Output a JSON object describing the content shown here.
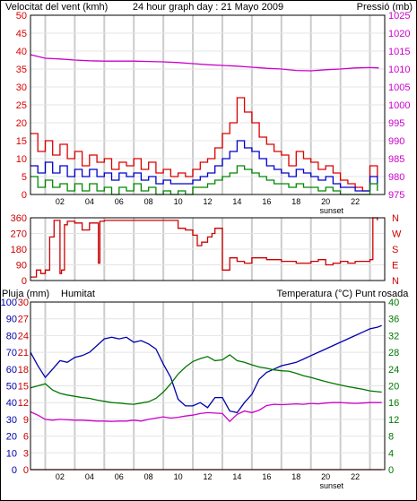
{
  "colors": {
    "wind_speed": "#dd0000",
    "wind_avg": "#0000cc",
    "wind_min": "#008800",
    "pressure": "#cc00cc",
    "direction": "#cc0000",
    "rain": "#cc0000",
    "humidity": "#0000aa",
    "temperature": "#007700",
    "dewpoint": "#cc00cc",
    "frame": "#000000",
    "grid": "#cccccc"
  },
  "chart_data": [
    {
      "type": "line",
      "title": "24 hour graph day : 21 Mayo 2009",
      "title_left": "Velocitat del vent (kmh)",
      "title_right": "Pressió (mb)",
      "x_tick_labels": [
        "02",
        "04",
        "06",
        "08",
        "10",
        "12",
        "14",
        "16",
        "18",
        "20",
        "22"
      ],
      "sunset_label": "sunset",
      "sunset_hour": 20.4,
      "y_left_ticks": [
        0,
        5,
        10,
        15,
        20,
        25,
        30,
        35,
        40,
        45,
        50
      ],
      "y_left_range": [
        0,
        50
      ],
      "y_right_ticks": [
        975,
        980,
        985,
        990,
        995,
        1000,
        1005,
        1010,
        1015,
        1020,
        1025
      ],
      "y_right_range": [
        975,
        1025
      ],
      "grid": true,
      "series": [
        {
          "key": "wind_gust",
          "axis": "left",
          "color": "wind_speed",
          "x": [
            0,
            0.5,
            1,
            1.5,
            2,
            2.5,
            3,
            3.5,
            4,
            4.5,
            5,
            5.5,
            6,
            6.5,
            7,
            7.5,
            8,
            8.5,
            9,
            9.5,
            10,
            10.5,
            11,
            11.5,
            12,
            12.5,
            13,
            13.5,
            14,
            14.5,
            15,
            15.5,
            16,
            16.5,
            17,
            17.5,
            18,
            18.5,
            19,
            19.5,
            20,
            20.5,
            21,
            21.5,
            22,
            22.5,
            23,
            23.5
          ],
          "values": [
            17,
            12,
            15,
            11,
            14,
            10,
            12,
            8,
            11,
            9,
            10,
            7,
            9,
            8,
            10,
            7,
            9,
            6,
            7,
            5,
            6,
            5,
            7,
            9,
            10,
            13,
            17,
            20,
            27,
            23,
            20,
            16,
            14,
            12,
            11,
            8,
            12,
            10,
            9,
            7,
            8,
            6,
            4,
            3,
            2,
            1,
            8,
            5
          ]
        },
        {
          "key": "wind_avg",
          "axis": "left",
          "color": "wind_avg",
          "x": [
            0,
            0.5,
            1,
            1.5,
            2,
            2.5,
            3,
            3.5,
            4,
            4.5,
            5,
            5.5,
            6,
            6.5,
            7,
            7.5,
            8,
            8.5,
            9,
            9.5,
            10,
            10.5,
            11,
            11.5,
            12,
            12.5,
            13,
            13.5,
            14,
            14.5,
            15,
            15.5,
            16,
            16.5,
            17,
            17.5,
            18,
            18.5,
            19,
            19.5,
            20,
            20.5,
            21,
            21.5,
            22,
            22.5,
            23,
            23.5
          ],
          "values": [
            8,
            6,
            9,
            6,
            8,
            5,
            7,
            5,
            7,
            5,
            6,
            4,
            6,
            5,
            6,
            4,
            5,
            3,
            4,
            3,
            3,
            3,
            4,
            5,
            6,
            8,
            10,
            12,
            15,
            13,
            12,
            10,
            8,
            7,
            6,
            5,
            7,
            6,
            5,
            4,
            5,
            3,
            2,
            2,
            1,
            1,
            5,
            3
          ]
        },
        {
          "key": "wind_min",
          "axis": "left",
          "color": "wind_min",
          "x": [
            0,
            0.5,
            1,
            1.5,
            2,
            2.5,
            3,
            3.5,
            4,
            4.5,
            5,
            5.5,
            6,
            6.5,
            7,
            7.5,
            8,
            8.5,
            9,
            9.5,
            10,
            10.5,
            11,
            11.5,
            12,
            12.5,
            13,
            13.5,
            14,
            14.5,
            15,
            15.5,
            16,
            16.5,
            17,
            17.5,
            18,
            18.5,
            19,
            19.5,
            20,
            20.5,
            21,
            21.5,
            22,
            22.5,
            23,
            23.5
          ],
          "values": [
            5,
            2,
            4,
            2,
            3,
            1,
            3,
            1,
            3,
            1,
            2,
            0,
            2,
            1,
            3,
            1,
            2,
            0,
            1,
            0,
            1,
            0,
            2,
            2,
            3,
            4,
            5,
            6,
            8,
            7,
            6,
            5,
            4,
            3,
            3,
            2,
            3,
            2,
            2,
            1,
            2,
            1,
            0,
            0,
            0,
            0,
            3,
            1
          ]
        },
        {
          "key": "pressure",
          "axis": "right",
          "color": "pressure",
          "x": [
            0,
            1,
            2,
            3,
            4,
            5,
            6,
            7,
            8,
            9,
            10,
            11,
            12,
            13,
            14,
            15,
            16,
            17,
            18,
            19,
            20,
            21,
            22,
            23,
            23.6
          ],
          "values": [
            1014,
            1013,
            1012.8,
            1012.5,
            1012.3,
            1012.2,
            1012.2,
            1012.2,
            1012.1,
            1012,
            1011.8,
            1011.5,
            1011.2,
            1011,
            1010.8,
            1010.5,
            1010.2,
            1010,
            1009.6,
            1009.5,
            1009.8,
            1010,
            1010.3,
            1010.4,
            1010.3
          ]
        }
      ]
    },
    {
      "type": "line",
      "title": "",
      "x_tick_labels": [],
      "y_ticks": [
        0,
        90,
        180,
        270,
        360
      ],
      "y_range": [
        0,
        360
      ],
      "y_right_labels": [
        "N",
        "W",
        "S",
        "E",
        "N"
      ],
      "grid": true,
      "series": [
        {
          "key": "wind_direction",
          "color": "direction",
          "x": [
            0,
            0.4,
            0.7,
            1,
            1.3,
            1.6,
            2,
            2.1,
            2.3,
            2.5,
            3,
            3.5,
            4,
            4.5,
            4.6,
            4.7,
            5,
            5.5,
            6,
            7,
            8,
            9,
            9.5,
            10,
            10.5,
            11,
            11.3,
            11.6,
            12,
            12.3,
            12.5,
            13,
            13.5,
            14,
            14.5,
            15,
            16,
            17,
            18,
            19,
            19.5,
            20,
            20.5,
            21,
            21.5,
            22,
            22.5,
            23,
            23.2,
            23.5
          ],
          "values": [
            20,
            60,
            40,
            60,
            250,
            345,
            40,
            60,
            320,
            340,
            330,
            290,
            330,
            330,
            100,
            340,
            345,
            345,
            345,
            345,
            345,
            345,
            345,
            300,
            290,
            260,
            200,
            220,
            250,
            270,
            300,
            60,
            130,
            110,
            100,
            130,
            120,
            110,
            100,
            110,
            120,
            90,
            100,
            110,
            100,
            110,
            110,
            120,
            360,
            345
          ]
        }
      ]
    },
    {
      "type": "line",
      "title": "",
      "title_left": "Pluja (mm)",
      "title_mid": "Humitat",
      "title_right_a": "Temperatura (°C)",
      "title_right_b": "Punt rosada",
      "x_tick_labels": [
        "02",
        "04",
        "06",
        "08",
        "10",
        "12",
        "14",
        "16",
        "18",
        "20",
        "22"
      ],
      "sunset_label": "sunset",
      "sunset_hour": 20.4,
      "y_left_ticks": [
        0,
        3,
        6,
        9,
        12,
        15,
        18,
        21,
        24,
        27,
        30
      ],
      "y_left_range": [
        0,
        30
      ],
      "y_left_alt_ticks": [
        0,
        10,
        20,
        30,
        40,
        50,
        60,
        70,
        80,
        90,
        100
      ],
      "y_right_ticks": [
        0,
        4,
        8,
        12,
        16,
        20,
        24,
        28,
        32,
        36,
        40
      ],
      "y_right_range": [
        0,
        40
      ],
      "grid": true,
      "series": [
        {
          "key": "rain",
          "axis": "left",
          "color": "rain",
          "x": [
            0,
            23.8
          ],
          "values": [
            0,
            0
          ]
        },
        {
          "key": "humidity",
          "axis": "left_alt",
          "color": "humidity",
          "x": [
            0,
            0.5,
            1,
            1.5,
            2,
            2.5,
            3,
            3.5,
            4,
            4.5,
            5,
            5.5,
            6,
            6.5,
            7,
            7.5,
            8,
            8.5,
            9,
            9.5,
            10,
            10.5,
            11,
            11.5,
            12,
            12.5,
            13,
            13.5,
            14,
            14.5,
            15,
            15.5,
            16,
            16.5,
            17,
            17.5,
            18,
            18.5,
            19,
            19.5,
            20,
            20.5,
            21,
            21.5,
            22,
            22.5,
            23,
            23.5,
            23.8
          ],
          "values": [
            70,
            62,
            55,
            60,
            65,
            64,
            67,
            68,
            70,
            74,
            78,
            79,
            78,
            79,
            76,
            77,
            75,
            72,
            63,
            55,
            42,
            38,
            38,
            40,
            37,
            43,
            43,
            35,
            34,
            40,
            45,
            54,
            58,
            60,
            62,
            63,
            64,
            66,
            68,
            70,
            72,
            74,
            76,
            78,
            80,
            82,
            84,
            85,
            86
          ]
        },
        {
          "key": "temperature",
          "axis": "right",
          "color": "temperature",
          "x": [
            0,
            0.5,
            1,
            1.5,
            2,
            2.5,
            3,
            3.5,
            4,
            4.5,
            5,
            5.5,
            6,
            6.5,
            7,
            7.5,
            8,
            8.5,
            9,
            9.5,
            10,
            10.5,
            11,
            11.5,
            12,
            12.5,
            13,
            13.5,
            14,
            14.5,
            15,
            15.5,
            16,
            16.5,
            17,
            17.5,
            18,
            18.5,
            19,
            19.5,
            20,
            20.5,
            21,
            21.5,
            22,
            22.5,
            23,
            23.5,
            23.8
          ],
          "values": [
            19.5,
            20,
            20.5,
            19,
            18.2,
            17.8,
            17.5,
            17.2,
            17,
            16.6,
            16.3,
            16,
            15.9,
            15.7,
            15.6,
            15.9,
            16.2,
            17,
            18.5,
            20.5,
            22.8,
            24.5,
            25.8,
            26.5,
            27,
            26,
            26.2,
            27.4,
            26,
            25.6,
            25,
            24.5,
            24.2,
            23.8,
            23.6,
            23.5,
            23,
            22.4,
            22,
            21.5,
            21,
            20.6,
            20.2,
            19.8,
            19.5,
            19.2,
            18.8,
            18.6,
            18.5
          ]
        },
        {
          "key": "dewpoint",
          "axis": "right",
          "color": "dewpoint",
          "x": [
            0,
            0.5,
            1,
            1.5,
            2,
            2.5,
            3,
            3.5,
            4,
            4.5,
            5,
            5.5,
            6,
            6.5,
            7,
            7.5,
            8,
            8.5,
            9,
            9.5,
            10,
            10.5,
            11,
            11.5,
            12,
            12.5,
            13,
            13.5,
            14,
            14.5,
            15,
            15.5,
            16,
            16.5,
            17,
            17.5,
            18,
            18.5,
            19,
            19.5,
            20,
            20.5,
            21,
            21.5,
            22,
            22.5,
            23,
            23.5,
            23.8
          ],
          "values": [
            13.8,
            13,
            12,
            11.8,
            12,
            11.9,
            11.8,
            11.8,
            11.7,
            11.6,
            11.6,
            11.5,
            11.6,
            11.6,
            11.8,
            11.6,
            12,
            12.3,
            12.6,
            12.3,
            12.5,
            12.8,
            13,
            13.4,
            13.6,
            13.5,
            13.4,
            11.5,
            13.2,
            14,
            13.6,
            14.2,
            15.3,
            15.6,
            15.5,
            15.6,
            15.7,
            15.6,
            15.8,
            15.7,
            15.9,
            16,
            16,
            15.9,
            15.8,
            15.9,
            16,
            16,
            16
          ]
        }
      ]
    }
  ]
}
